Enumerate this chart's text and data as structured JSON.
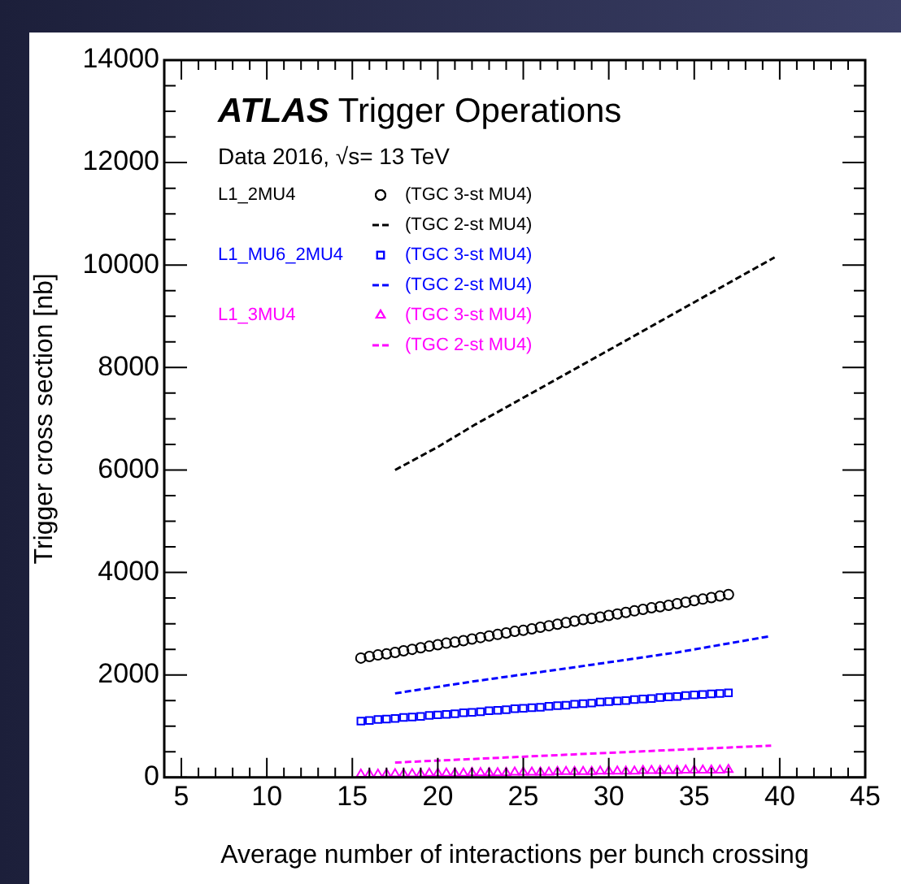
{
  "chart_data": {
    "type": "scatter",
    "title": "ATLAS Trigger Operations",
    "subtitle": "Data 2016, √s= 13 TeV",
    "xlabel": "Average number of interactions per bunch crossing",
    "ylabel": "Trigger cross section [nb]",
    "xlim": [
      4,
      45
    ],
    "xticks": [
      5,
      10,
      15,
      20,
      25,
      30,
      35,
      40,
      45
    ],
    "ylim": [
      0,
      14000
    ],
    "yticks": [
      0,
      2000,
      4000,
      6000,
      8000,
      10000,
      12000,
      14000
    ],
    "grid": false,
    "legend": "top left",
    "annotations": [
      "L1_2MU4",
      "L1_MU6_2MU4",
      "L1_3MU4"
    ],
    "x": [
      15.5,
      16,
      16.5,
      17,
      17.5,
      18,
      18.5,
      19,
      19.5,
      20,
      20.5,
      21,
      21.5,
      22,
      22.5,
      23,
      23.5,
      24,
      24.5,
      25,
      25.5,
      26,
      26.5,
      27,
      27.5,
      28,
      28.5,
      29,
      29.5,
      30,
      30.5,
      31,
      31.5,
      32,
      32.5,
      33,
      33.5,
      34,
      34.5,
      35,
      35.5,
      36,
      36.5,
      37
    ],
    "series": [
      {
        "name": "(TGC 3-st MU4)",
        "type": "scatter",
        "marker": "circle",
        "color": "#000000",
        "values": [
          2330,
          2360,
          2390,
          2410,
          2440,
          2470,
          2500,
          2530,
          2560,
          2590,
          2620,
          2640,
          2670,
          2700,
          2730,
          2760,
          2790,
          2820,
          2850,
          2870,
          2900,
          2930,
          2960,
          2990,
          3020,
          3050,
          3080,
          3100,
          3130,
          3160,
          3190,
          3220,
          3250,
          3280,
          3310,
          3330,
          3360,
          3390,
          3420,
          3450,
          3480,
          3510,
          3540,
          3570
        ]
      },
      {
        "name": "(TGC 2-st MU4)",
        "type": "line",
        "line_style": "dashed",
        "marker": "none",
        "color": "#000000",
        "x": [
          17.5,
          20,
          22.2,
          25,
          30,
          35.3,
          39.7
        ],
        "values": [
          6000,
          6450,
          6890,
          7410,
          8340,
          9330,
          10150
        ]
      },
      {
        "name": "(TGC 3-st MU4)",
        "type": "scatter",
        "marker": "square",
        "color": "#0000ff",
        "values": [
          1100,
          1110,
          1130,
          1140,
          1150,
          1170,
          1180,
          1190,
          1210,
          1220,
          1230,
          1240,
          1260,
          1270,
          1280,
          1300,
          1310,
          1320,
          1340,
          1350,
          1360,
          1370,
          1390,
          1400,
          1410,
          1430,
          1440,
          1450,
          1470,
          1480,
          1490,
          1500,
          1520,
          1530,
          1540,
          1560,
          1570,
          1580,
          1600,
          1610,
          1620,
          1630,
          1640,
          1650
        ]
      },
      {
        "name": "(TGC 2-st MU4)",
        "type": "line",
        "line_style": "dashed",
        "marker": "none",
        "color": "#0000ff",
        "x": [
          17.5,
          22,
          28,
          34,
          39.5
        ],
        "values": [
          1640,
          1870,
          2150,
          2440,
          2760
        ]
      },
      {
        "name": "(TGC 3-st MU4)",
        "type": "scatter",
        "marker": "triangle",
        "color": "#ff00ff",
        "values": [
          60,
          60,
          60,
          70,
          70,
          70,
          70,
          70,
          80,
          80,
          80,
          80,
          80,
          90,
          90,
          90,
          90,
          90,
          100,
          100,
          100,
          100,
          100,
          110,
          110,
          110,
          110,
          110,
          120,
          120,
          120,
          120,
          120,
          130,
          130,
          130,
          130,
          130,
          140,
          140,
          140,
          140,
          140,
          150
        ]
      },
      {
        "name": "(TGC 2-st MU4)",
        "type": "line",
        "line_style": "dashed",
        "marker": "none",
        "color": "#ff00ff",
        "x": [
          17.5,
          28,
          39.5
        ],
        "values": [
          290,
          450,
          620
        ]
      }
    ]
  }
}
